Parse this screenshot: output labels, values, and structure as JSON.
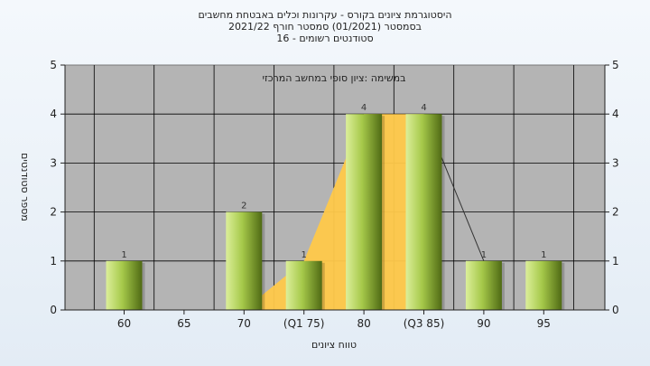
{
  "chart_data": {
    "type": "bar",
    "title_lines": [
      "היסטוגרמת ציונים בקורס - עקרונות וכלים באבטחת מחשבים",
      "בסמסטר  (01/2021)  סמסטר חורף 2021/22",
      "סטודנטים רשומים - 16"
    ],
    "annotation": "במשימה :ציון סופי במחשב המרכזי",
    "xlabel": "טווח ציונים",
    "ylabel": "מספר סטודנטים",
    "categories": [
      "60",
      "65",
      "70",
      "(Q1 75)",
      "80",
      "(Q3 85)",
      "90",
      "95"
    ],
    "values": [
      1,
      0,
      2,
      1,
      4,
      4,
      1,
      1
    ],
    "ylim": [
      0,
      5
    ],
    "yticks": [
      0,
      1,
      2,
      3,
      4,
      5
    ],
    "quartile_area": {
      "x_start": "70",
      "x_end": "(Q3 85)",
      "values": [
        0,
        1,
        4,
        4
      ]
    },
    "grid": true,
    "colors": {
      "bar_light": "#dcef9a",
      "bar_mid": "#a6c94a",
      "bar_dark": "#4f6a14",
      "plot_bg": "#b4b4b4",
      "area": "#ffc94a",
      "grid": "#000000"
    }
  }
}
